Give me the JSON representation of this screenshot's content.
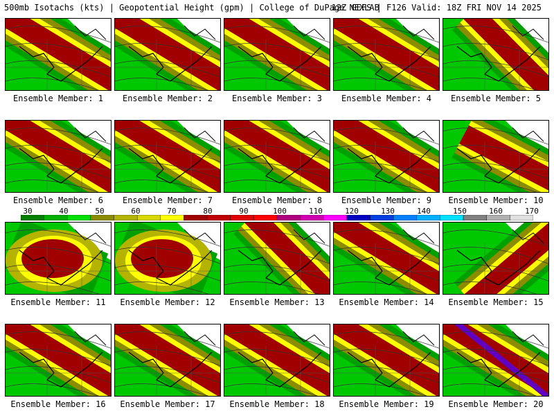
{
  "header": {
    "left": "500mb Isotachs (kts) | Geopotential Height (gpm) | College of DuPage NEXLAB",
    "right": "12Z GEFS | F126 Valid: 18Z FRI NOV 14 2025"
  },
  "panels": [
    {
      "label": "Ensemble Member: 1",
      "jet": "nw-se",
      "core": "red"
    },
    {
      "label": "Ensemble Member: 2",
      "jet": "nw-se",
      "core": "red"
    },
    {
      "label": "Ensemble Member: 3",
      "jet": "nw-se",
      "core": "red"
    },
    {
      "label": "Ensemble Member: 4",
      "jet": "nw-se",
      "core": "red"
    },
    {
      "label": "Ensemble Member: 5",
      "jet": "n-s",
      "core": "red"
    },
    {
      "label": "Ensemble Member: 6",
      "jet": "nw-se",
      "core": "red"
    },
    {
      "label": "Ensemble Member: 7",
      "jet": "nw-se",
      "core": "red"
    },
    {
      "label": "Ensemble Member: 8",
      "jet": "nw-se",
      "core": "red"
    },
    {
      "label": "Ensemble Member: 9",
      "jet": "nw-se",
      "core": "red"
    },
    {
      "label": "Ensemble Member: 10",
      "jet": "e",
      "core": "red"
    },
    {
      "label": "Ensemble Member: 11",
      "jet": "blob",
      "core": "red"
    },
    {
      "label": "Ensemble Member: 12",
      "jet": "blob",
      "core": "red"
    },
    {
      "label": "Ensemble Member: 13",
      "jet": "n-s",
      "core": "red"
    },
    {
      "label": "Ensemble Member: 14",
      "jet": "nw-se",
      "core": "red"
    },
    {
      "label": "Ensemble Member: 15",
      "jet": "ne",
      "core": "red"
    },
    {
      "label": "Ensemble Member: 16",
      "jet": "nw-se",
      "core": "red"
    },
    {
      "label": "Ensemble Member: 17",
      "jet": "nw-se",
      "core": "red"
    },
    {
      "label": "Ensemble Member: 18",
      "jet": "nw-se",
      "core": "red"
    },
    {
      "label": "Ensemble Member: 19",
      "jet": "nw-se",
      "core": "red"
    },
    {
      "label": "Ensemble Member: 20",
      "jet": "nw-se",
      "core": "purple"
    }
  ],
  "legend": {
    "labels": [
      "30",
      "40",
      "50",
      "60",
      "70",
      "80",
      "90",
      "100",
      "110",
      "120",
      "130",
      "140",
      "150",
      "160",
      "170"
    ],
    "colors": [
      "#007f00",
      "#00b000",
      "#00e000",
      "#8c8c00",
      "#b4b400",
      "#d8d800",
      "#ffff00",
      "#a00000",
      "#c00000",
      "#e00000",
      "#ff0000",
      "#b00080",
      "#d000b0",
      "#ff00ff",
      "#0000c0",
      "#0040e0",
      "#0080ff",
      "#00b0ff",
      "#00e0ff",
      "#808080",
      "#b0b0b0",
      "#e0e0e0"
    ]
  }
}
